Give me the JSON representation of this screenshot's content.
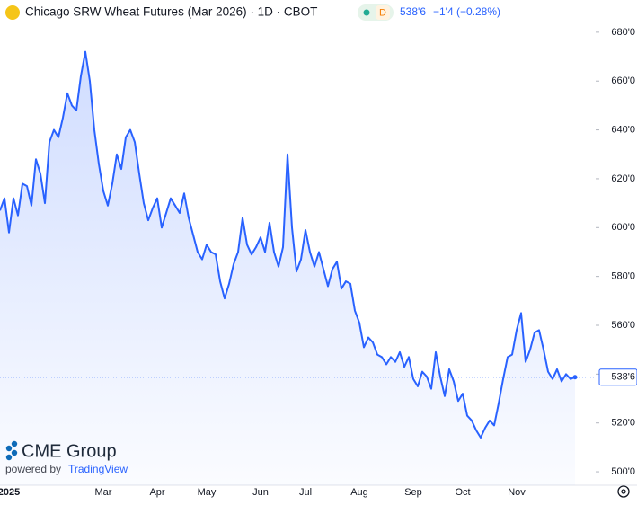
{
  "chart_data": {
    "type": "area",
    "title": "Chicago SRW Wheat Futures (Mar 2026) · 1D · CBOT",
    "badge": "D",
    "last_price": "538'6",
    "change": "−1'4 (−0.28%)",
    "branding": {
      "logo": "CME Group",
      "powered": "powered by",
      "provider": "TradingView"
    },
    "color": "#2962ff",
    "categories": [
      null,
      null,
      "2025",
      null,
      null,
      null,
      null,
      null,
      null,
      null,
      null,
      null,
      null,
      null,
      null,
      null,
      null,
      null,
      null,
      null,
      null,
      null,
      null,
      "Mar",
      null,
      null,
      null,
      null,
      null,
      null,
      null,
      null,
      null,
      null,
      null,
      "Apr",
      null,
      null,
      null,
      null,
      null,
      null,
      null,
      null,
      null,
      null,
      "May",
      null,
      null,
      null,
      null,
      null,
      null,
      null,
      null,
      null,
      null,
      null,
      "Jun",
      null,
      null,
      null,
      null,
      null,
      null,
      null,
      null,
      null,
      "Jul",
      null,
      null,
      null,
      null,
      null,
      null,
      null,
      null,
      null,
      null,
      null,
      "Aug",
      null,
      null,
      null,
      null,
      null,
      null,
      null,
      null,
      null,
      null,
      null,
      "Sep",
      null,
      null,
      null,
      null,
      null,
      null,
      null,
      null,
      null,
      null,
      "Oct",
      null,
      null,
      null,
      null,
      null,
      null,
      null,
      null,
      null,
      null,
      null,
      "Nov",
      null,
      null,
      null,
      null,
      null,
      null,
      null,
      null,
      null,
      null,
      null,
      null,
      null
    ],
    "values": [
      607,
      612,
      598,
      612,
      605,
      618,
      617,
      609,
      628,
      622,
      610,
      635,
      640,
      637,
      645,
      655,
      650,
      648,
      662,
      672,
      660,
      640,
      626,
      615,
      609,
      618,
      630,
      624,
      637,
      640,
      635,
      622,
      610,
      603,
      608,
      612,
      600,
      606,
      612,
      609,
      606,
      614,
      604,
      597,
      590,
      587,
      593,
      590,
      589,
      578,
      571,
      577,
      585,
      590,
      604,
      593,
      589,
      592,
      596,
      590,
      602,
      590,
      584,
      592,
      630,
      600,
      582,
      587,
      599,
      590,
      584,
      590,
      583,
      576,
      583,
      586,
      575,
      578,
      577,
      566,
      561,
      551,
      555,
      553,
      548,
      547,
      544,
      547,
      545,
      549,
      543,
      547,
      538,
      535,
      541,
      539,
      534,
      549,
      539,
      531,
      542,
      537,
      529,
      532,
      523,
      521,
      517,
      514,
      518,
      521,
      519,
      528,
      538,
      547,
      548,
      558,
      565,
      545,
      550,
      557,
      558,
      550,
      541,
      538,
      542,
      537,
      540,
      538,
      538.75
    ],
    "ylim": [
      494.5,
      693.2
    ],
    "yticks": [
      {
        "value": 500,
        "label": "500'0"
      },
      {
        "value": 520,
        "label": "520'0"
      },
      {
        "value": 540,
        "label": "540'0"
      },
      {
        "value": 560,
        "label": "560'0"
      },
      {
        "value": 580,
        "label": "580'0"
      },
      {
        "value": 600,
        "label": "600'0"
      },
      {
        "value": 620,
        "label": "620'0"
      },
      {
        "value": 640,
        "label": "640'0"
      },
      {
        "value": 660,
        "label": "660'0"
      },
      {
        "value": 680,
        "label": "680'0"
      }
    ]
  }
}
